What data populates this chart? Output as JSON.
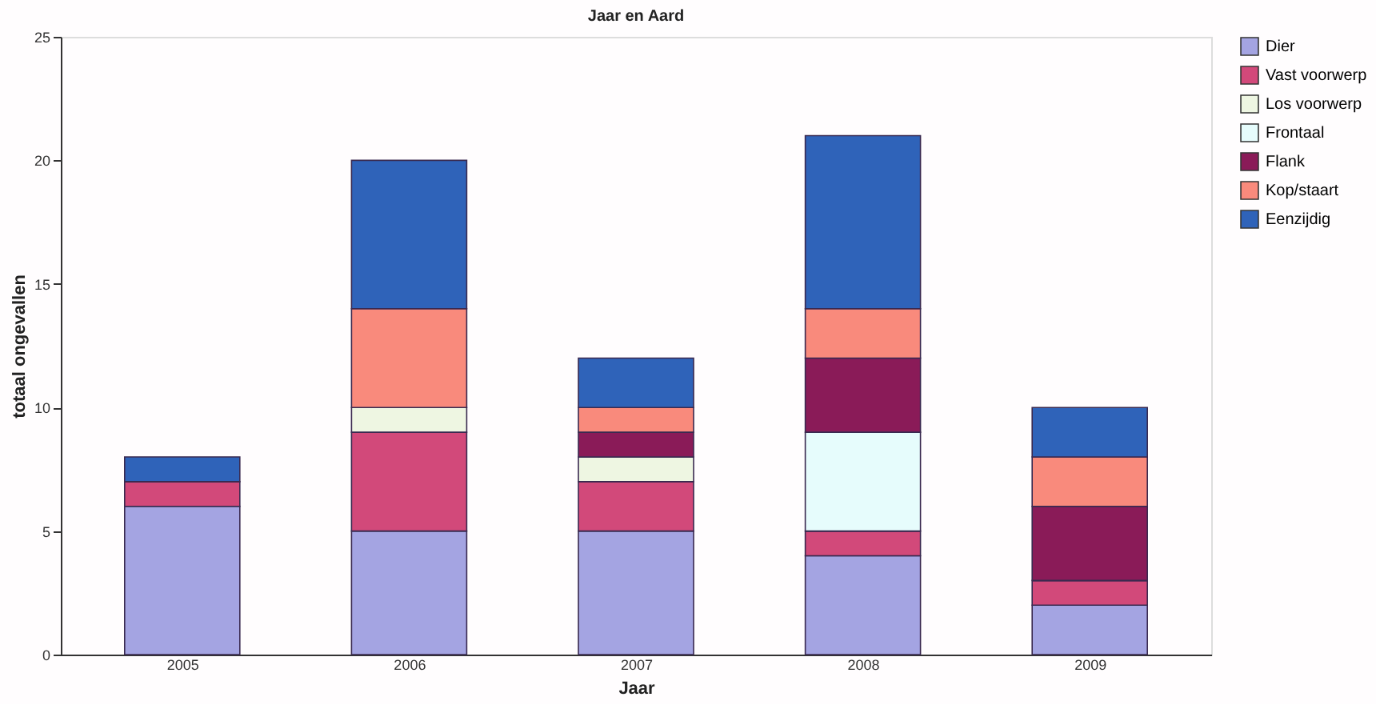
{
  "chart_data": {
    "type": "bar",
    "title": "Jaar en Aard",
    "xlabel": "Jaar",
    "ylabel": "totaal ongevallen",
    "stacked": true,
    "legend": "top right",
    "grid": false,
    "categories": [
      "2005",
      "2006",
      "2007",
      "2008",
      "2009"
    ],
    "ylim": [
      0,
      25
    ],
    "yticks": [
      0,
      5,
      10,
      15,
      20,
      25
    ],
    "series": [
      {
        "name": "Dier",
        "color": "#a4a4e2",
        "values": [
          6,
          5,
          5,
          4,
          2
        ]
      },
      {
        "name": "Vast voorwerp",
        "color": "#d2497a",
        "values": [
          1,
          4,
          2,
          1,
          1
        ]
      },
      {
        "name": "Los voorwerp",
        "color": "#eef6e2",
        "values": [
          0,
          1,
          1,
          0,
          0
        ]
      },
      {
        "name": "Frontaal",
        "color": "#e6fcfc",
        "values": [
          0,
          0,
          0,
          4,
          0
        ]
      },
      {
        "name": "Flank",
        "color": "#8a1b58",
        "values": [
          0,
          0,
          1,
          3,
          3
        ]
      },
      {
        "name": "Kop/staart",
        "color": "#f98a7c",
        "values": [
          0,
          4,
          1,
          2,
          2
        ]
      },
      {
        "name": "Eenzijdig",
        "color": "#2f63b9",
        "values": [
          1,
          6,
          2,
          7,
          2
        ]
      }
    ]
  }
}
